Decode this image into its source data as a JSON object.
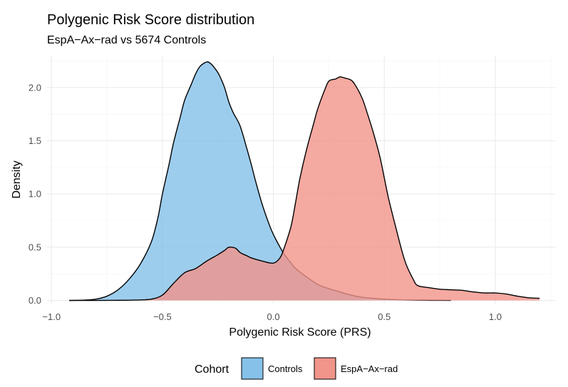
{
  "chart_data": {
    "type": "area",
    "title": "Polygenic Risk Score distribution",
    "subtitle": "EspA−Ax−rad vs 5674 Controls",
    "xlabel": "Polygenic Risk Score (PRS)",
    "ylabel": "Density",
    "xlim": [
      -1.02,
      1.27
    ],
    "ylim": [
      -0.03,
      2.3
    ],
    "x_ticks": [
      -1.0,
      -0.5,
      0.0,
      0.5,
      1.0
    ],
    "x_tick_labels": [
      "−1.0",
      "−0.5",
      "0.0",
      "0.5",
      "1.0"
    ],
    "y_ticks": [
      0.0,
      0.5,
      1.0,
      1.5,
      2.0
    ],
    "y_tick_labels": [
      "0.0",
      "0.5",
      "1.0",
      "1.5",
      "2.0"
    ],
    "grid": true,
    "legend": {
      "title": "Cohort",
      "position": "bottom"
    },
    "series": [
      {
        "name": "Controls",
        "color": "#85C1E9",
        "x": [
          -0.92,
          -0.85,
          -0.8,
          -0.75,
          -0.7,
          -0.65,
          -0.6,
          -0.55,
          -0.52,
          -0.5,
          -0.47,
          -0.45,
          -0.42,
          -0.4,
          -0.37,
          -0.35,
          -0.33,
          -0.3,
          -0.28,
          -0.26,
          -0.25,
          -0.24,
          -0.22,
          -0.2,
          -0.18,
          -0.15,
          -0.12,
          -0.1,
          -0.08,
          -0.05,
          -0.02,
          0.0,
          0.03,
          0.05,
          0.08,
          0.1,
          0.15,
          0.2,
          0.25,
          0.3,
          0.35,
          0.4,
          0.45,
          0.5,
          0.55,
          0.6,
          0.65,
          0.7,
          0.75,
          0.8
        ],
        "values": [
          0.0,
          0.003,
          0.012,
          0.04,
          0.1,
          0.2,
          0.34,
          0.55,
          0.78,
          1.0,
          1.28,
          1.48,
          1.72,
          1.88,
          2.03,
          2.13,
          2.2,
          2.24,
          2.22,
          2.17,
          2.14,
          2.1,
          2.0,
          1.86,
          1.76,
          1.64,
          1.43,
          1.28,
          1.12,
          0.9,
          0.72,
          0.62,
          0.5,
          0.43,
          0.35,
          0.3,
          0.22,
          0.15,
          0.11,
          0.08,
          0.05,
          0.03,
          0.02,
          0.012,
          0.007,
          0.004,
          0.002,
          0.001,
          0.0005,
          0.0
        ]
      },
      {
        "name": "EspA−Ax−rad",
        "color": "#F1948A",
        "x": [
          -0.92,
          -0.8,
          -0.7,
          -0.6,
          -0.55,
          -0.5,
          -0.45,
          -0.4,
          -0.35,
          -0.3,
          -0.25,
          -0.22,
          -0.2,
          -0.17,
          -0.15,
          -0.12,
          -0.1,
          -0.05,
          0.0,
          0.03,
          0.05,
          0.08,
          0.1,
          0.12,
          0.15,
          0.18,
          0.2,
          0.23,
          0.25,
          0.28,
          0.3,
          0.32,
          0.35,
          0.37,
          0.4,
          0.42,
          0.45,
          0.48,
          0.5,
          0.52,
          0.55,
          0.58,
          0.6,
          0.63,
          0.65,
          0.7,
          0.75,
          0.8,
          0.85,
          0.9,
          0.95,
          1.0,
          1.05,
          1.1,
          1.15,
          1.2
        ],
        "values": [
          0.0,
          0.0,
          0.001,
          0.005,
          0.012,
          0.05,
          0.16,
          0.26,
          0.3,
          0.37,
          0.43,
          0.47,
          0.5,
          0.49,
          0.45,
          0.42,
          0.4,
          0.37,
          0.35,
          0.4,
          0.5,
          0.7,
          0.92,
          1.15,
          1.42,
          1.65,
          1.8,
          1.97,
          2.06,
          2.08,
          2.1,
          2.09,
          2.07,
          2.02,
          1.9,
          1.78,
          1.58,
          1.35,
          1.15,
          0.95,
          0.7,
          0.46,
          0.33,
          0.2,
          0.14,
          0.12,
          0.105,
          0.1,
          0.095,
          0.08,
          0.07,
          0.07,
          0.06,
          0.04,
          0.025,
          0.02
        ]
      }
    ]
  }
}
